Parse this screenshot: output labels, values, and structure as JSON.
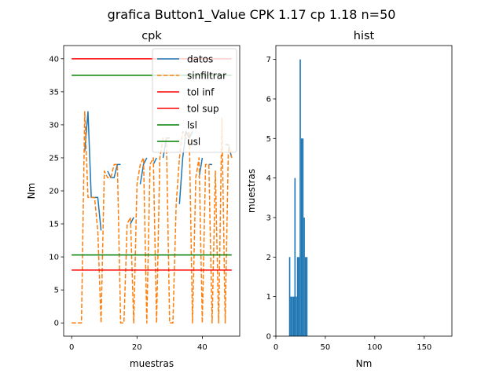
{
  "figure": {
    "suptitle": "grafica Button1_Value CPK 1.17 cp 1.18 n=50"
  },
  "chart_data": [
    {
      "type": "line",
      "title": "cpk",
      "xlabel": "muestras",
      "ylabel": "Nm",
      "xlim": [
        -2.45,
        51.45
      ],
      "ylim": [
        -2.0,
        42.0
      ],
      "xticks": [
        0,
        20,
        40
      ],
      "yticks": [
        0,
        5,
        10,
        15,
        20,
        25,
        30,
        35,
        40
      ],
      "grid": false,
      "legend_position": "top-right",
      "series": [
        {
          "name": "datos",
          "color": "#1f77b4",
          "style": "solid",
          "x": [
            4,
            5,
            6,
            7,
            8,
            9,
            10,
            11,
            12,
            13,
            14,
            15,
            16,
            17,
            18,
            19,
            20,
            21,
            22,
            23,
            24,
            25,
            26,
            27,
            28,
            29,
            30,
            31,
            32,
            33,
            34,
            35,
            36,
            37,
            38,
            39,
            40,
            41,
            42,
            43,
            44,
            45,
            46,
            47,
            48,
            49
          ],
          "y": [
            26,
            32,
            19,
            19,
            19,
            14,
            null,
            23,
            22,
            22,
            24,
            24,
            null,
            null,
            15,
            16,
            null,
            21,
            24,
            25,
            null,
            24,
            25,
            null,
            25,
            28,
            28,
            null,
            null,
            18,
            25,
            29,
            28,
            29,
            null,
            22,
            25,
            null,
            24,
            24,
            null,
            23,
            null,
            27,
            27,
            25
          ]
        },
        {
          "name": "sinfiltrar",
          "color": "#ff7f0e",
          "style": "dashed",
          "x": [
            0,
            1,
            2,
            3,
            4,
            5,
            6,
            7,
            8,
            9,
            10,
            11,
            12,
            13,
            14,
            15,
            16,
            17,
            18,
            19,
            20,
            21,
            22,
            23,
            24,
            25,
            26,
            27,
            28,
            29,
            30,
            31,
            32,
            33,
            34,
            35,
            36,
            37,
            38,
            39,
            40,
            41,
            42,
            43,
            44,
            45,
            46,
            47,
            48,
            49
          ],
          "y": [
            0,
            0,
            0,
            0,
            32,
            19,
            19,
            19,
            14,
            0,
            23,
            22,
            22,
            24,
            24,
            0,
            0,
            15,
            16,
            0,
            21,
            24,
            25,
            0,
            24,
            25,
            0,
            25,
            28,
            28,
            0,
            0,
            18,
            25,
            29,
            28,
            29,
            0,
            22,
            25,
            0,
            24,
            24,
            0,
            23,
            0,
            31,
            0,
            27,
            25
          ]
        },
        {
          "name": "tol inf",
          "color": "#ff0000",
          "style": "solid",
          "x": [
            0,
            49
          ],
          "y": [
            40,
            40
          ]
        },
        {
          "name": "tol sup",
          "color": "#ff0000",
          "style": "solid",
          "x": [
            0,
            49
          ],
          "y": [
            8,
            8
          ]
        },
        {
          "name": "lsl",
          "color": "#008000",
          "style": "solid",
          "x": [
            0,
            49
          ],
          "y": [
            37.5,
            37.5
          ]
        },
        {
          "name": "usl",
          "color": "#008000",
          "style": "solid",
          "x": [
            0,
            49
          ],
          "y": [
            10.3,
            10.3
          ]
        }
      ]
    },
    {
      "type": "bar",
      "title": "hist",
      "xlabel": "Nm",
      "ylabel": "muestras",
      "xlim": [
        0,
        178
      ],
      "ylim": [
        0,
        7.35
      ],
      "xticks": [
        0,
        50,
        100,
        150
      ],
      "yticks": [
        0,
        1,
        2,
        3,
        4,
        5,
        6,
        7
      ],
      "grid": false,
      "color": "#1f77b4",
      "bins": [
        {
          "x0": 13.3,
          "x1": 14.6,
          "value": 2
        },
        {
          "x0": 14.6,
          "x1": 16.0,
          "value": 1
        },
        {
          "x0": 16.0,
          "x1": 17.3,
          "value": 1
        },
        {
          "x0": 17.3,
          "x1": 18.7,
          "value": 1
        },
        {
          "x0": 18.7,
          "x1": 20.0,
          "value": 4
        },
        {
          "x0": 20.0,
          "x1": 21.3,
          "value": 1
        },
        {
          "x0": 21.3,
          "x1": 22.7,
          "value": 2
        },
        {
          "x0": 22.7,
          "x1": 24.0,
          "value": 2
        },
        {
          "x0": 24.0,
          "x1": 25.3,
          "value": 7
        },
        {
          "x0": 25.3,
          "x1": 26.7,
          "value": 5
        },
        {
          "x0": 26.7,
          "x1": 28.0,
          "value": 5
        },
        {
          "x0": 28.0,
          "x1": 29.3,
          "value": 3
        },
        {
          "x0": 29.3,
          "x1": 30.7,
          "value": 2
        },
        {
          "x0": 30.7,
          "x1": 32.0,
          "value": 2
        }
      ]
    }
  ]
}
